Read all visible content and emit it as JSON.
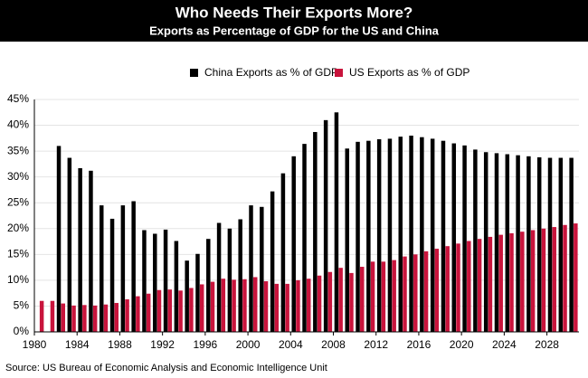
{
  "chart_data": {
    "type": "bar",
    "title": "Who Needs Their Exports More?",
    "subtitle": "Exports as Percentage of GDP for the US and China",
    "source": "Source: US Bureau of Economic Analysis and Economic Intelligence Unit",
    "x": [
      1980,
      1981,
      1982,
      1983,
      1984,
      1985,
      1986,
      1987,
      1988,
      1989,
      1990,
      1991,
      1992,
      1993,
      1994,
      1995,
      1996,
      1997,
      1998,
      1999,
      2000,
      2001,
      2002,
      2003,
      2004,
      2005,
      2006,
      2007,
      2008,
      2009,
      2010,
      2011,
      2012,
      2013,
      2014,
      2015,
      2016,
      2017,
      2018,
      2019,
      2020,
      2021,
      2022,
      2023,
      2024,
      2025,
      2026,
      2027,
      2028,
      2029,
      2030
    ],
    "series": [
      {
        "name": "China Exports as % of GDP",
        "color": "#000000",
        "values": [
          null,
          null,
          36,
          33.7,
          31.7,
          31.2,
          24.5,
          21.9,
          24.5,
          25.3,
          19.7,
          19,
          19.8,
          17.6,
          13.8,
          15.1,
          18,
          21.1,
          20,
          21.8,
          24.5,
          24.2,
          27.2,
          30.7,
          34,
          36.4,
          38.7,
          41,
          42.5,
          35.5,
          36.8,
          37,
          37.3,
          37.4,
          37.8,
          38,
          37.7,
          37.4,
          37,
          36.5,
          36.1,
          35.3,
          34.8,
          34.6,
          34.4,
          34.2,
          34,
          33.8,
          33.7,
          33.7,
          33.7
        ]
      },
      {
        "name": "US Exports as % of GDP",
        "color": "#c8143c",
        "values": [
          6,
          6,
          5.5,
          5.1,
          5.2,
          5.1,
          5.3,
          5.6,
          6.3,
          6.9,
          7.4,
          8.1,
          8.2,
          8,
          8.5,
          9.2,
          9.7,
          10.3,
          10.1,
          10.2,
          10.6,
          9.8,
          9.3,
          9.3,
          10,
          10.3,
          10.9,
          11.6,
          12.4,
          11.4,
          12.6,
          13.6,
          13.6,
          13.9,
          14.6,
          15,
          15.6,
          16.1,
          16.6,
          17.1,
          17.6,
          18,
          18.4,
          18.8,
          19.1,
          19.4,
          19.7,
          20,
          20.3,
          20.7,
          21
        ]
      }
    ],
    "xlim": [
      1980,
      2031
    ],
    "xticks": [
      1980,
      1984,
      1988,
      1992,
      1996,
      2000,
      2004,
      2008,
      2012,
      2016,
      2020,
      2024,
      2028
    ],
    "ylim": [
      0,
      45
    ],
    "yticks": [
      {
        "value": 0,
        "label": "0%"
      },
      {
        "value": 5,
        "label": "5%"
      },
      {
        "value": 10,
        "label": "10%"
      },
      {
        "value": 15,
        "label": "15%"
      },
      {
        "value": 20,
        "label": "20%"
      },
      {
        "value": 25,
        "label": "25%"
      },
      {
        "value": 30,
        "label": "30%"
      },
      {
        "value": 35,
        "label": "35%"
      },
      {
        "value": 40,
        "label": "40%"
      },
      {
        "value": 45,
        "label": "45%"
      }
    ],
    "grid": true,
    "legend": "top"
  }
}
